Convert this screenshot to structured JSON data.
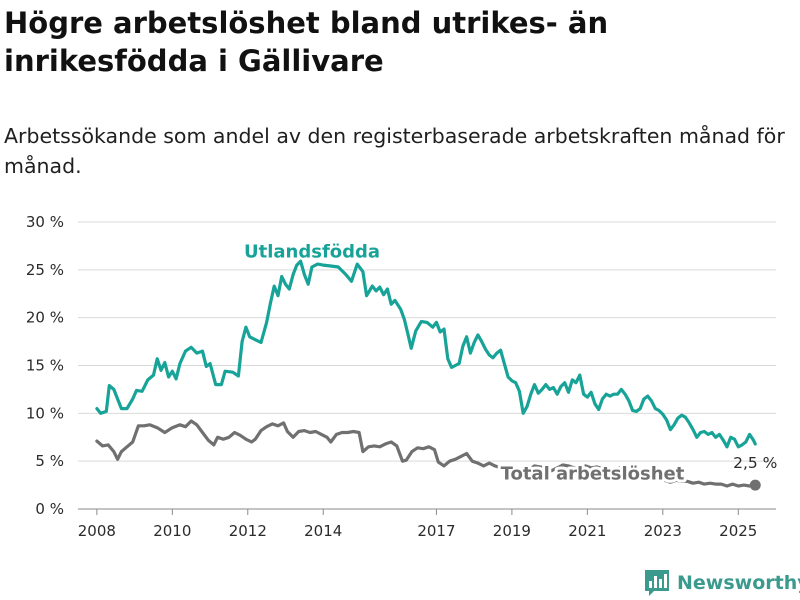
{
  "chart_data": {
    "type": "line",
    "title": "Högre arbetslöshet bland utrikes- än inrikesfödda i Gällivare",
    "subtitle": "Arbetssökande som andel av den registerbaserade arbetskraften månad för månad.",
    "xlabel": "",
    "ylabel": "",
    "x_range": [
      2007.5,
      2026.0
    ],
    "ylim": [
      0,
      30
    ],
    "y_ticks": [
      {
        "value": 0,
        "label": "0 %"
      },
      {
        "value": 5,
        "label": "5 %"
      },
      {
        "value": 10,
        "label": "10 %"
      },
      {
        "value": 15,
        "label": "15 %"
      },
      {
        "value": 20,
        "label": "20 %"
      },
      {
        "value": 25,
        "label": "25 %"
      },
      {
        "value": 30,
        "label": "30 %"
      }
    ],
    "x_ticks": [
      {
        "value": 2008,
        "label": "2008"
      },
      {
        "value": 2010,
        "label": "2010"
      },
      {
        "value": 2012,
        "label": "2012"
      },
      {
        "value": 2014,
        "label": "2014"
      },
      {
        "value": 2017,
        "label": "2017"
      },
      {
        "value": 2019,
        "label": "2019"
      },
      {
        "value": 2021,
        "label": "2021"
      },
      {
        "value": 2023,
        "label": "2023"
      },
      {
        "value": 2025,
        "label": "2025"
      }
    ],
    "grid": "horizontal",
    "series": [
      {
        "name": "Utlandsfödda",
        "color": "#17a398",
        "label_at": [
          2011.9,
          26.3
        ],
        "points": [
          [
            2008.0,
            10.5
          ],
          [
            2008.1,
            10.0
          ],
          [
            2008.25,
            10.2
          ],
          [
            2008.33,
            12.9
          ],
          [
            2008.45,
            12.5
          ],
          [
            2008.55,
            11.5
          ],
          [
            2008.65,
            10.5
          ],
          [
            2008.8,
            10.5
          ],
          [
            2008.95,
            11.5
          ],
          [
            2009.05,
            12.4
          ],
          [
            2009.2,
            12.3
          ],
          [
            2009.35,
            13.5
          ],
          [
            2009.5,
            14.0
          ],
          [
            2009.6,
            15.7
          ],
          [
            2009.7,
            14.5
          ],
          [
            2009.8,
            15.3
          ],
          [
            2009.9,
            13.8
          ],
          [
            2010.0,
            14.4
          ],
          [
            2010.1,
            13.6
          ],
          [
            2010.2,
            15.2
          ],
          [
            2010.35,
            16.5
          ],
          [
            2010.5,
            16.9
          ],
          [
            2010.65,
            16.3
          ],
          [
            2010.8,
            16.5
          ],
          [
            2010.9,
            14.9
          ],
          [
            2011.0,
            15.2
          ],
          [
            2011.15,
            13.0
          ],
          [
            2011.3,
            13.0
          ],
          [
            2011.4,
            14.4
          ],
          [
            2011.6,
            14.3
          ],
          [
            2011.75,
            13.9
          ],
          [
            2011.85,
            17.5
          ],
          [
            2011.95,
            19.0
          ],
          [
            2012.05,
            18.0
          ],
          [
            2012.2,
            17.7
          ],
          [
            2012.35,
            17.4
          ],
          [
            2012.5,
            19.5
          ],
          [
            2012.6,
            21.5
          ],
          [
            2012.7,
            23.3
          ],
          [
            2012.8,
            22.3
          ],
          [
            2012.9,
            24.3
          ],
          [
            2013.0,
            23.5
          ],
          [
            2013.1,
            23.0
          ],
          [
            2013.2,
            24.5
          ],
          [
            2013.3,
            25.5
          ],
          [
            2013.4,
            25.9
          ],
          [
            2013.5,
            24.5
          ],
          [
            2013.6,
            23.5
          ],
          [
            2013.7,
            25.3
          ],
          [
            2013.85,
            25.6
          ],
          [
            2014.0,
            25.5
          ],
          [
            2014.2,
            25.4
          ],
          [
            2014.4,
            25.3
          ],
          [
            2014.6,
            24.5
          ],
          [
            2014.75,
            23.8
          ],
          [
            2014.9,
            25.6
          ],
          [
            2015.05,
            24.8
          ],
          [
            2015.15,
            22.3
          ],
          [
            2015.3,
            23.3
          ],
          [
            2015.4,
            22.8
          ],
          [
            2015.5,
            23.2
          ],
          [
            2015.6,
            22.4
          ],
          [
            2015.7,
            23.0
          ],
          [
            2015.8,
            21.4
          ],
          [
            2015.9,
            21.8
          ],
          [
            2016.05,
            20.9
          ],
          [
            2016.15,
            19.8
          ],
          [
            2016.25,
            18.2
          ],
          [
            2016.33,
            16.8
          ],
          [
            2016.45,
            18.6
          ],
          [
            2016.6,
            19.6
          ],
          [
            2016.75,
            19.5
          ],
          [
            2016.9,
            19.0
          ],
          [
            2017.0,
            19.5
          ],
          [
            2017.1,
            18.5
          ],
          [
            2017.2,
            18.8
          ],
          [
            2017.3,
            15.7
          ],
          [
            2017.4,
            14.8
          ],
          [
            2017.5,
            15.0
          ],
          [
            2017.6,
            15.2
          ],
          [
            2017.7,
            17.0
          ],
          [
            2017.8,
            18.0
          ],
          [
            2017.9,
            16.3
          ],
          [
            2018.0,
            17.4
          ],
          [
            2018.1,
            18.2
          ],
          [
            2018.2,
            17.5
          ],
          [
            2018.3,
            16.7
          ],
          [
            2018.4,
            16.1
          ],
          [
            2018.5,
            15.8
          ],
          [
            2018.6,
            16.3
          ],
          [
            2018.7,
            16.6
          ],
          [
            2018.8,
            15.2
          ],
          [
            2018.9,
            13.8
          ],
          [
            2019.0,
            13.4
          ],
          [
            2019.1,
            13.2
          ],
          [
            2019.2,
            12.3
          ],
          [
            2019.3,
            10.0
          ],
          [
            2019.4,
            10.7
          ],
          [
            2019.5,
            12.0
          ],
          [
            2019.6,
            13.0
          ],
          [
            2019.7,
            12.1
          ],
          [
            2019.8,
            12.5
          ],
          [
            2019.9,
            13.0
          ],
          [
            2020.0,
            12.5
          ],
          [
            2020.1,
            12.7
          ],
          [
            2020.2,
            12.0
          ],
          [
            2020.3,
            12.8
          ],
          [
            2020.4,
            13.2
          ],
          [
            2020.5,
            12.2
          ],
          [
            2020.6,
            13.5
          ],
          [
            2020.7,
            13.2
          ],
          [
            2020.8,
            14.0
          ],
          [
            2020.9,
            12.0
          ],
          [
            2021.0,
            11.7
          ],
          [
            2021.1,
            12.2
          ],
          [
            2021.2,
            11.0
          ],
          [
            2021.3,
            10.4
          ],
          [
            2021.4,
            11.5
          ],
          [
            2021.5,
            12.0
          ],
          [
            2021.6,
            11.8
          ],
          [
            2021.7,
            12.0
          ],
          [
            2021.8,
            12.0
          ],
          [
            2021.9,
            12.5
          ],
          [
            2022.0,
            12.0
          ],
          [
            2022.1,
            11.3
          ],
          [
            2022.2,
            10.3
          ],
          [
            2022.3,
            10.2
          ],
          [
            2022.4,
            10.5
          ],
          [
            2022.5,
            11.5
          ],
          [
            2022.6,
            11.8
          ],
          [
            2022.7,
            11.3
          ],
          [
            2022.8,
            10.5
          ],
          [
            2022.9,
            10.3
          ],
          [
            2023.0,
            9.9
          ],
          [
            2023.1,
            9.3
          ],
          [
            2023.2,
            8.3
          ],
          [
            2023.3,
            8.8
          ],
          [
            2023.4,
            9.5
          ],
          [
            2023.5,
            9.8
          ],
          [
            2023.6,
            9.6
          ],
          [
            2023.7,
            9.0
          ],
          [
            2023.8,
            8.3
          ],
          [
            2023.9,
            7.5
          ],
          [
            2024.0,
            8.0
          ],
          [
            2024.1,
            8.1
          ],
          [
            2024.2,
            7.8
          ],
          [
            2024.3,
            8.0
          ],
          [
            2024.4,
            7.5
          ],
          [
            2024.5,
            7.8
          ],
          [
            2024.6,
            7.2
          ],
          [
            2024.7,
            6.5
          ],
          [
            2024.8,
            7.5
          ],
          [
            2024.9,
            7.3
          ],
          [
            2025.0,
            6.5
          ],
          [
            2025.1,
            6.7
          ],
          [
            2025.2,
            7.0
          ],
          [
            2025.3,
            7.8
          ],
          [
            2025.4,
            7.2
          ],
          [
            2025.45,
            6.8
          ]
        ]
      },
      {
        "name": "Total arbetslöshet",
        "color": "#707070",
        "label_at": [
          2018.7,
          3.1
        ],
        "end_label": "2,5 %",
        "end_value": [
          2025.45,
          2.5
        ],
        "points": [
          [
            2008.0,
            7.1
          ],
          [
            2008.15,
            6.6
          ],
          [
            2008.3,
            6.7
          ],
          [
            2008.45,
            6.0
          ],
          [
            2008.55,
            5.2
          ],
          [
            2008.65,
            6.0
          ],
          [
            2008.8,
            6.5
          ],
          [
            2008.95,
            7.0
          ],
          [
            2009.1,
            8.7
          ],
          [
            2009.25,
            8.7
          ],
          [
            2009.4,
            8.8
          ],
          [
            2009.6,
            8.5
          ],
          [
            2009.8,
            8.0
          ],
          [
            2010.0,
            8.5
          ],
          [
            2010.2,
            8.8
          ],
          [
            2010.35,
            8.6
          ],
          [
            2010.5,
            9.2
          ],
          [
            2010.65,
            8.8
          ],
          [
            2010.8,
            8.0
          ],
          [
            2010.95,
            7.2
          ],
          [
            2011.1,
            6.7
          ],
          [
            2011.2,
            7.5
          ],
          [
            2011.35,
            7.3
          ],
          [
            2011.5,
            7.5
          ],
          [
            2011.65,
            8.0
          ],
          [
            2011.8,
            7.7
          ],
          [
            2011.95,
            7.3
          ],
          [
            2012.1,
            7.0
          ],
          [
            2012.2,
            7.3
          ],
          [
            2012.35,
            8.2
          ],
          [
            2012.5,
            8.6
          ],
          [
            2012.65,
            8.9
          ],
          [
            2012.8,
            8.7
          ],
          [
            2012.95,
            9.0
          ],
          [
            2013.05,
            8.1
          ],
          [
            2013.2,
            7.5
          ],
          [
            2013.35,
            8.1
          ],
          [
            2013.5,
            8.2
          ],
          [
            2013.65,
            8.0
          ],
          [
            2013.8,
            8.1
          ],
          [
            2013.95,
            7.8
          ],
          [
            2014.1,
            7.5
          ],
          [
            2014.2,
            7.0
          ],
          [
            2014.35,
            7.8
          ],
          [
            2014.5,
            8.0
          ],
          [
            2014.65,
            8.0
          ],
          [
            2014.8,
            8.1
          ],
          [
            2014.95,
            8.0
          ],
          [
            2015.05,
            6.0
          ],
          [
            2015.2,
            6.5
          ],
          [
            2015.35,
            6.6
          ],
          [
            2015.5,
            6.5
          ],
          [
            2015.65,
            6.8
          ],
          [
            2015.8,
            7.0
          ],
          [
            2015.95,
            6.6
          ],
          [
            2016.1,
            5.0
          ],
          [
            2016.2,
            5.1
          ],
          [
            2016.35,
            6.0
          ],
          [
            2016.5,
            6.4
          ],
          [
            2016.65,
            6.3
          ],
          [
            2016.8,
            6.5
          ],
          [
            2016.95,
            6.2
          ],
          [
            2017.05,
            4.9
          ],
          [
            2017.2,
            4.5
          ],
          [
            2017.35,
            5.0
          ],
          [
            2017.5,
            5.2
          ],
          [
            2017.65,
            5.5
          ],
          [
            2017.8,
            5.8
          ],
          [
            2017.95,
            5.0
          ],
          [
            2018.1,
            4.8
          ],
          [
            2018.25,
            4.5
          ],
          [
            2018.4,
            4.8
          ],
          [
            2018.55,
            4.5
          ],
          [
            2018.7,
            4.3
          ],
          [
            2018.85,
            4.4
          ],
          [
            2019.0,
            4.2
          ],
          [
            2019.15,
            4.0
          ],
          [
            2019.3,
            4.3
          ],
          [
            2019.45,
            4.1
          ],
          [
            2019.6,
            4.5
          ],
          [
            2019.75,
            4.4
          ],
          [
            2019.9,
            4.3
          ],
          [
            2020.05,
            4.0
          ],
          [
            2020.2,
            4.3
          ],
          [
            2020.35,
            4.6
          ],
          [
            2020.5,
            4.5
          ],
          [
            2020.65,
            4.3
          ],
          [
            2020.8,
            4.4
          ],
          [
            2020.95,
            4.5
          ],
          [
            2021.1,
            4.3
          ],
          [
            2021.25,
            4.4
          ],
          [
            2021.4,
            4.2
          ],
          [
            2021.55,
            4.0
          ],
          [
            2021.7,
            4.1
          ],
          [
            2021.85,
            4.3
          ],
          [
            2022.0,
            4.0
          ],
          [
            2022.15,
            3.9
          ],
          [
            2022.3,
            3.8
          ],
          [
            2022.45,
            3.6
          ],
          [
            2022.6,
            3.5
          ],
          [
            2022.75,
            3.4
          ],
          [
            2022.9,
            3.2
          ],
          [
            2023.05,
            3.0
          ],
          [
            2023.2,
            2.8
          ],
          [
            2023.35,
            3.0
          ],
          [
            2023.5,
            2.9
          ],
          [
            2023.65,
            2.9
          ],
          [
            2023.8,
            2.7
          ],
          [
            2023.95,
            2.8
          ],
          [
            2024.1,
            2.6
          ],
          [
            2024.25,
            2.7
          ],
          [
            2024.4,
            2.6
          ],
          [
            2024.55,
            2.6
          ],
          [
            2024.7,
            2.4
          ],
          [
            2024.85,
            2.6
          ],
          [
            2025.0,
            2.4
          ],
          [
            2025.15,
            2.5
          ],
          [
            2025.3,
            2.4
          ],
          [
            2025.45,
            2.5
          ]
        ]
      }
    ]
  },
  "branding": {
    "logo_text": "Newsworthy",
    "icon": "bar-chart-logo-icon",
    "color": "#3a9a8e"
  }
}
